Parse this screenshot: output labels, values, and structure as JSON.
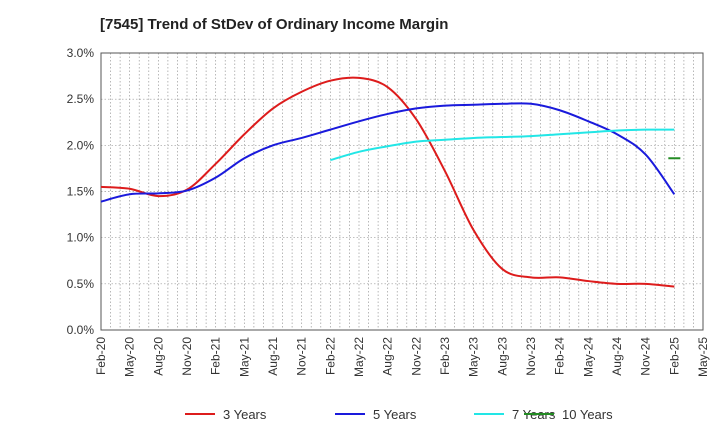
{
  "chart_data": {
    "type": "line",
    "title": "[7545]  Trend of StDev of Ordinary Income Margin",
    "xlabel": "",
    "ylabel": "",
    "x": [
      "Feb-20",
      "May-20",
      "Aug-20",
      "Nov-20",
      "Feb-21",
      "May-21",
      "Aug-21",
      "Nov-21",
      "Feb-22",
      "May-22",
      "Aug-22",
      "Nov-22",
      "Feb-23",
      "May-23",
      "Aug-23",
      "Nov-23",
      "Feb-24",
      "May-24",
      "Aug-24",
      "Nov-24",
      "Feb-25",
      "May-25"
    ],
    "y_ticks": [
      "0.0%",
      "0.5%",
      "1.0%",
      "1.5%",
      "2.0%",
      "2.5%",
      "3.0%"
    ],
    "ylim": [
      0,
      3.0
    ],
    "grid": true,
    "legend_position": "bottom",
    "series": [
      {
        "name": "3 Years",
        "color": "#dd1c1c",
        "values": [
          1.55,
          1.53,
          1.45,
          1.52,
          1.8,
          2.12,
          2.4,
          2.58,
          2.7,
          2.73,
          2.63,
          2.28,
          1.72,
          1.08,
          0.66,
          0.57,
          0.57,
          0.53,
          0.5,
          0.5,
          0.47,
          null
        ]
      },
      {
        "name": "5 Years",
        "color": "#1a1adc",
        "values": [
          1.39,
          1.47,
          1.48,
          1.51,
          1.65,
          1.86,
          2.0,
          2.08,
          2.17,
          2.26,
          2.34,
          2.4,
          2.43,
          2.44,
          2.45,
          2.45,
          2.38,
          2.26,
          2.12,
          1.9,
          1.47,
          null
        ]
      },
      {
        "name": "7 Years",
        "color": "#22e6e6",
        "values": [
          null,
          null,
          null,
          null,
          null,
          null,
          null,
          null,
          1.84,
          1.93,
          1.99,
          2.04,
          2.06,
          2.08,
          2.09,
          2.1,
          2.12,
          2.14,
          2.16,
          2.17,
          2.17,
          null
        ]
      },
      {
        "name": "10 Years",
        "color": "#228b22",
        "values": [
          null,
          null,
          null,
          null,
          null,
          null,
          null,
          null,
          null,
          null,
          null,
          null,
          null,
          null,
          null,
          null,
          null,
          null,
          null,
          null,
          1.86,
          null
        ]
      }
    ]
  }
}
